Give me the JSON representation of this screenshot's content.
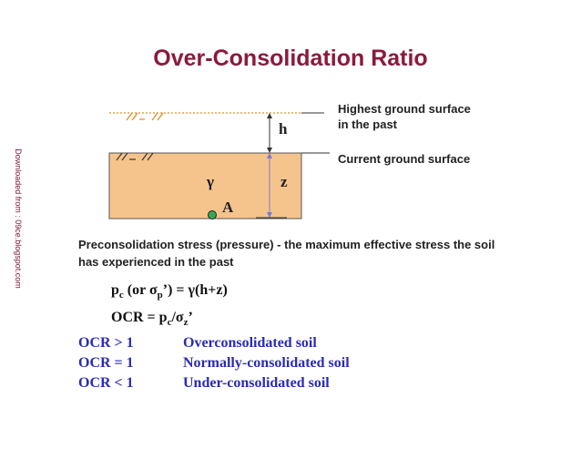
{
  "title": "Over-Consolidation Ratio",
  "watermark": "Downloaded from : 09ce.blogspot.com",
  "diagram": {
    "past_surface_label": "Highest ground surface\nin the past",
    "current_surface_label": "Current ground surface",
    "h_label": "h",
    "z_label": "z",
    "gamma_label": "γ",
    "point_label": "A",
    "soil_color": "#f5c48c",
    "point_color": "#3aa655"
  },
  "definition": "Preconsolidation stress (pressure) - the maximum effective stress the soil has experienced in the past",
  "equation1": {
    "p": "p",
    "c": "c",
    "mid1": " (or ",
    "sigma": "σ",
    "sub_p": "p",
    "mid2": "’) = γ(h+z)"
  },
  "equation2": {
    "start": "OCR = p",
    "c": "c",
    "slash": "/",
    "sigma": "σ",
    "sub_z": "z",
    "end": "’"
  },
  "ocr_cases": [
    {
      "condition": "OCR > 1",
      "description": "Overconsolidated soil"
    },
    {
      "condition": "OCR = 1",
      "description": "Normally-consolidated soil"
    },
    {
      "condition": "OCR < 1",
      "description": "Under-consolidated soil"
    }
  ]
}
